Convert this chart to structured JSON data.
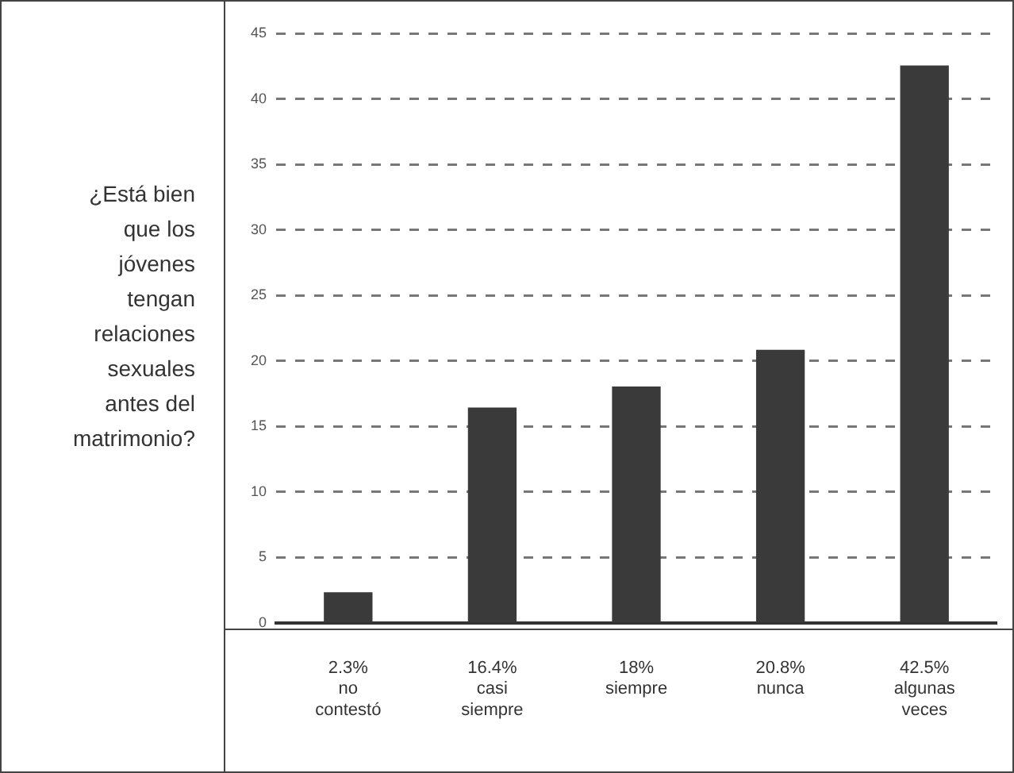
{
  "chart_data": {
    "type": "bar",
    "ylabel": "¿Está bien que los jóvenes tengan relaciones sexuales antes del matrimonio?",
    "categories": [
      "no contestó",
      "casi siempre",
      "siempre",
      "nunca",
      "algunas veces"
    ],
    "values": [
      2.3,
      16.4,
      18,
      20.8,
      42.5
    ],
    "value_labels": [
      "2.3%",
      "16.4%",
      "18%",
      "20.8%",
      "42.5%"
    ],
    "color": "#3a3a3a",
    "ylim": [
      0,
      45
    ],
    "yticks": [
      0,
      5,
      10,
      15,
      20,
      25,
      30,
      35,
      40,
      45
    ],
    "grid": "y",
    "legend": false
  }
}
